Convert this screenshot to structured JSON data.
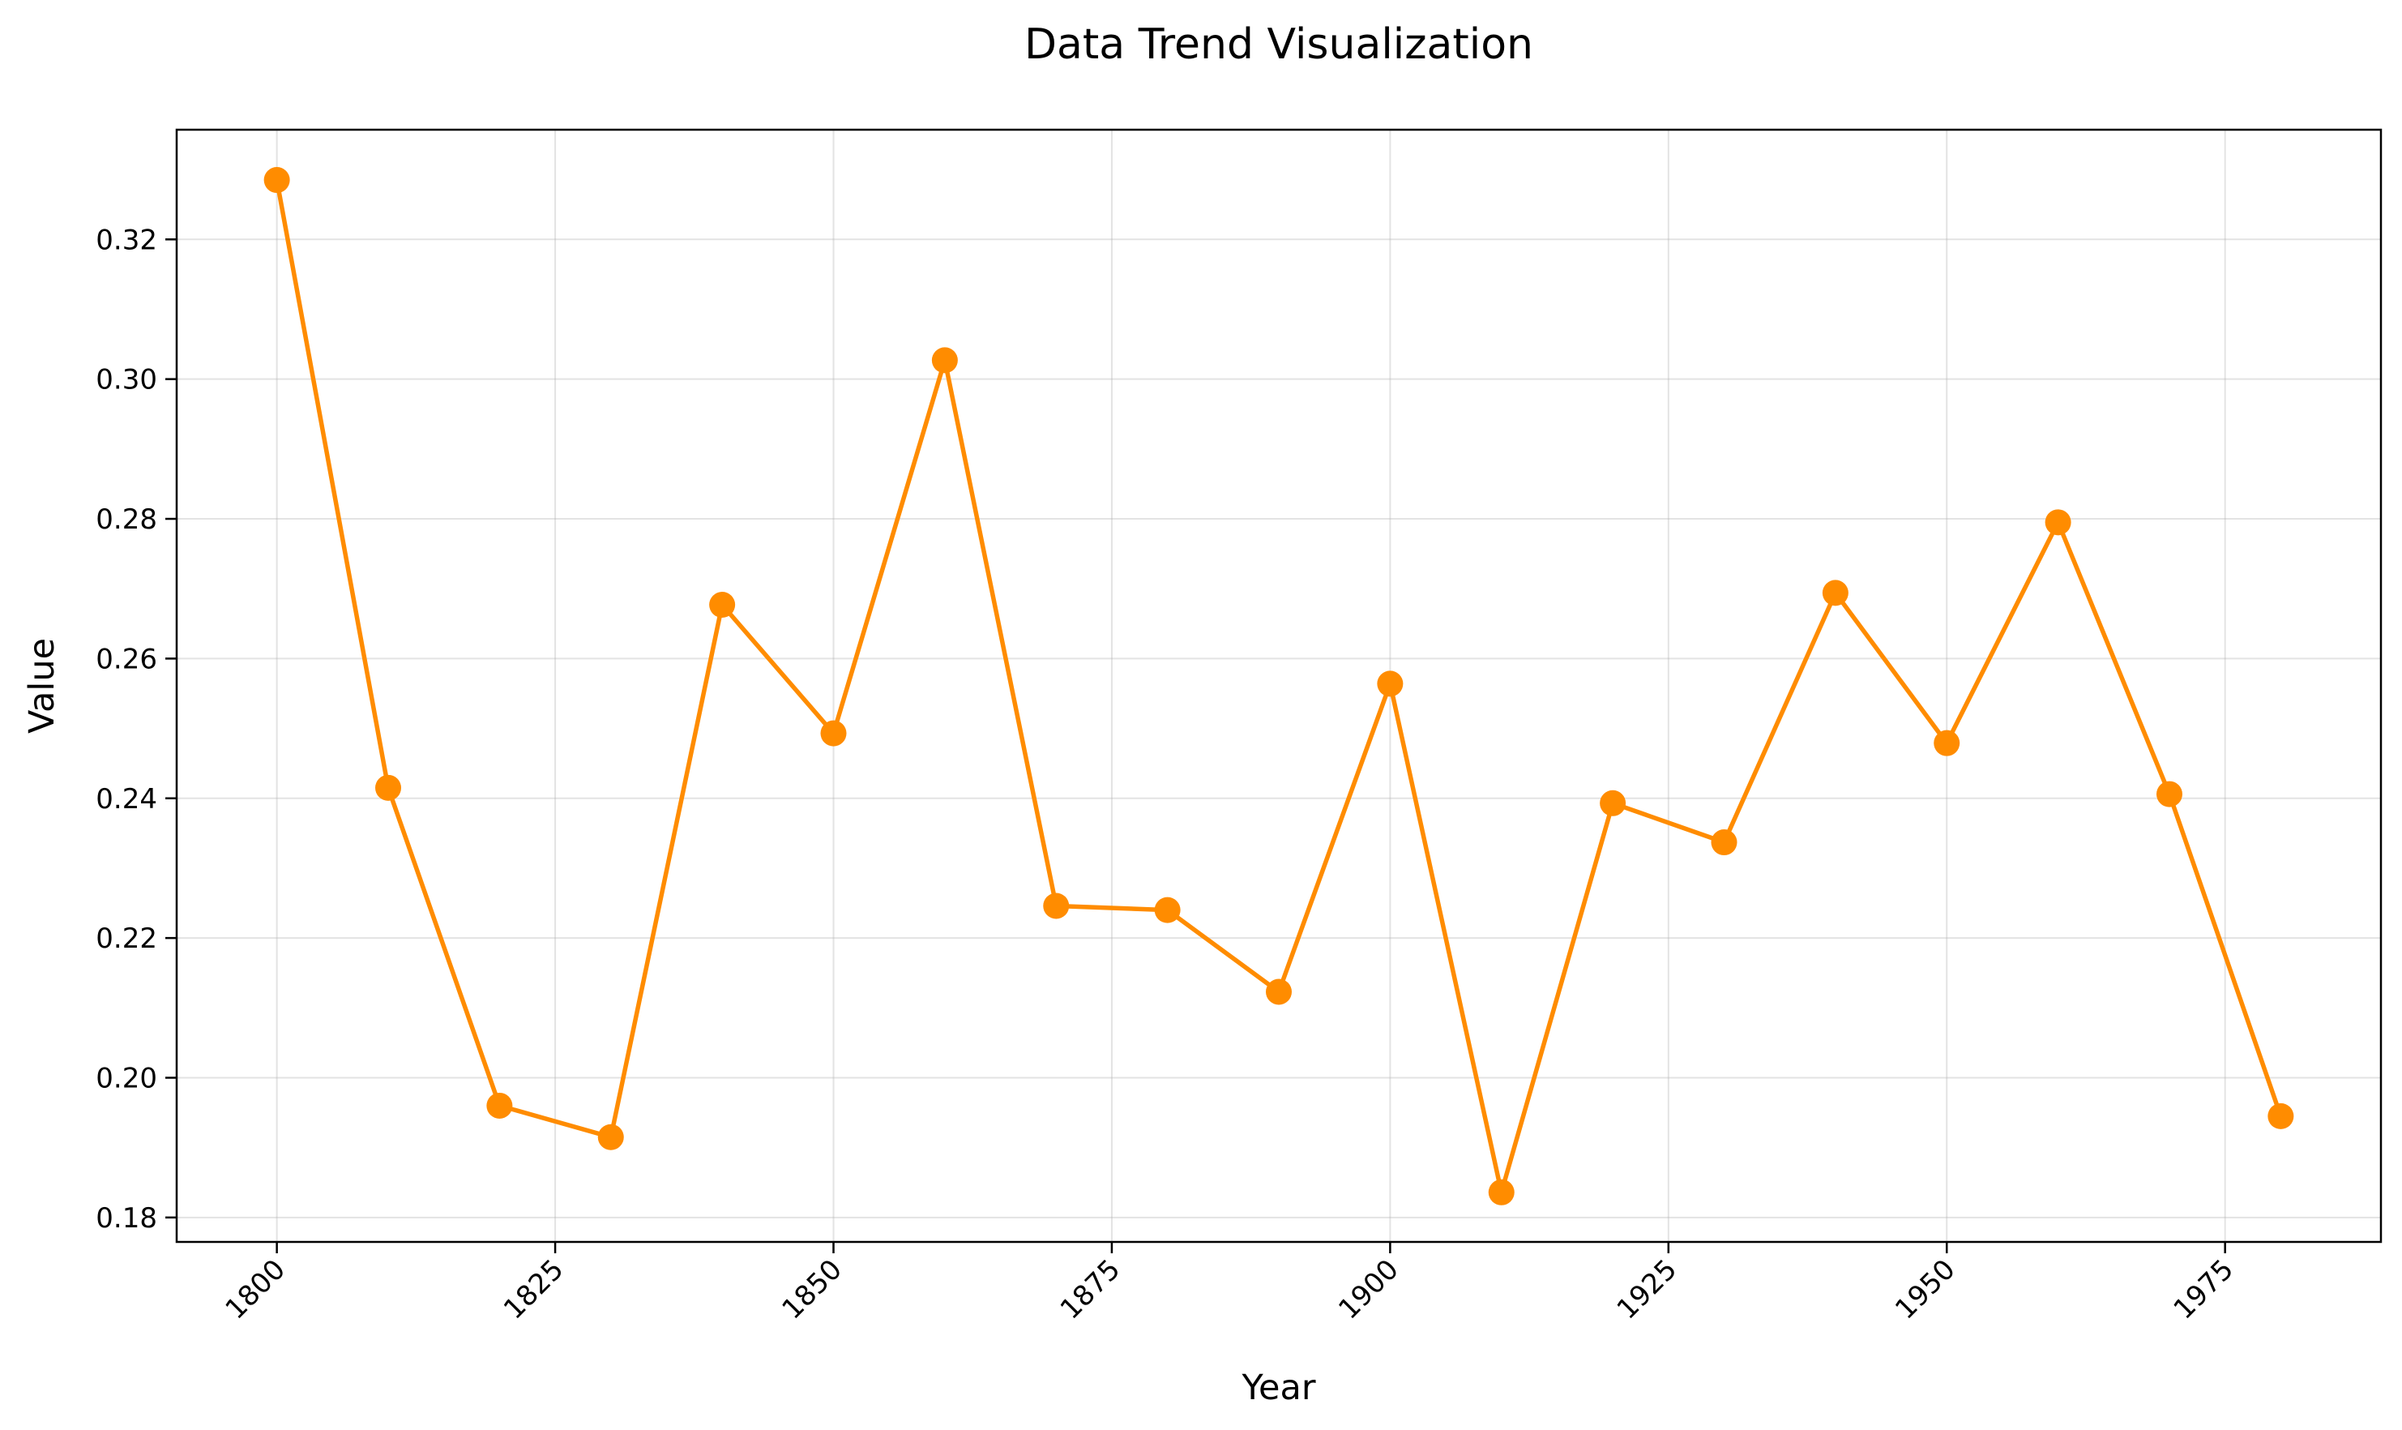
{
  "chart_data": {
    "type": "line",
    "title": "Data Trend Visualization",
    "xlabel": "Year",
    "ylabel": "Value",
    "x": [
      1800,
      1810,
      1820,
      1830,
      1840,
      1850,
      1860,
      1870,
      1880,
      1890,
      1900,
      1910,
      1920,
      1930,
      1940,
      1950,
      1960,
      1970,
      1980
    ],
    "series": [
      {
        "values": [
          0.3285,
          0.2415,
          0.196,
          0.1915,
          0.2677,
          0.2493,
          0.3027,
          0.2246,
          0.224,
          0.2123,
          0.2564,
          0.1836,
          0.2393,
          0.2337,
          0.2694,
          0.2479,
          0.2795,
          0.2406,
          0.1945
        ],
        "color": "#ff8c00"
      }
    ],
    "xlim": [
      1791,
      1989
    ],
    "ylim": [
      0.1765,
      0.3357
    ],
    "xticks": [
      "1800",
      "1825",
      "1850",
      "1875",
      "1900",
      "1925",
      "1950",
      "1975"
    ],
    "yticks": [
      "0.18",
      "0.20",
      "0.22",
      "0.24",
      "0.26",
      "0.28",
      "0.30",
      "0.32"
    ],
    "grid": true,
    "legend": false
  }
}
